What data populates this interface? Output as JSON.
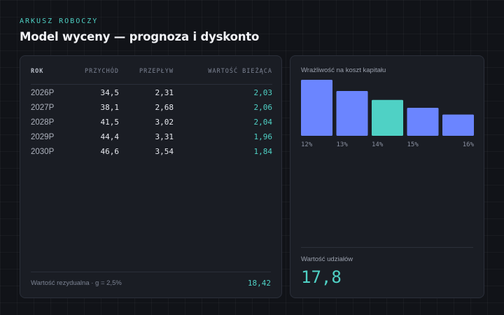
{
  "header": {
    "eyebrow": "ARKUSZ ROBOCZY",
    "title": "Model wyceny — prognoza i dyskonto"
  },
  "table": {
    "columns": [
      "ROK",
      "PRZYCHÓD",
      "PRZEPŁYW",
      "WARTOŚĆ BIEŻĄCA"
    ],
    "rows": [
      [
        "2026P",
        "34,5",
        "2,31",
        "2,03"
      ],
      [
        "2027P",
        "38,1",
        "2,68",
        "2,06"
      ],
      [
        "2028P",
        "41,5",
        "3,02",
        "2,04"
      ],
      [
        "2029P",
        "44,4",
        "3,31",
        "1,96"
      ],
      [
        "2030P",
        "46,6",
        "3,54",
        "1,84"
      ]
    ],
    "footer": {
      "label": "Wartość rezydualna · g = 2,5%",
      "value": "18,42"
    }
  },
  "sensitivity": {
    "label": "Wrażliwość na koszt kapitału",
    "equity_label": "Wartość udziałów",
    "equity_value": "17,8"
  },
  "chart_data": {
    "type": "bar",
    "categories": [
      "12%",
      "13%",
      "14%",
      "15%",
      "16%"
    ],
    "values": [
      1.0,
      0.8,
      0.64,
      0.5,
      0.38
    ],
    "highlight_index": 2,
    "ylim": [
      0,
      1.0
    ],
    "colors": {
      "default": "#6b85ff",
      "highlight": "#4fd1c5"
    }
  }
}
